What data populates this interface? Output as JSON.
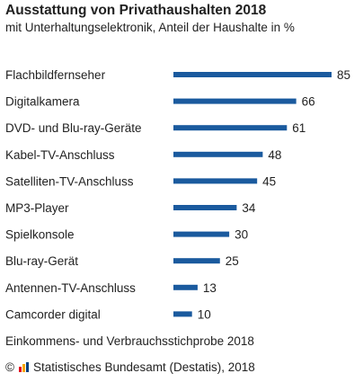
{
  "chart_data": {
    "type": "bar",
    "orientation": "horizontal",
    "title": "Ausstattung von Privathaushalten 2018",
    "subtitle": "mit Unterhaltungselektronik, Anteil der Haushalte in %",
    "categories": [
      "Flachbildfernseher",
      "Digitalkamera",
      "DVD- und Blu-ray-Geräte",
      "Kabel-TV-Anschluss",
      "Satelliten-TV-Anschluss",
      "MP3-Player",
      "Spielkonsole",
      "Blu-ray-Gerät",
      "Antennen-TV-Anschluss",
      "Camcorder digital"
    ],
    "values": [
      85,
      66,
      61,
      48,
      45,
      34,
      30,
      25,
      13,
      10
    ],
    "value_labels": [
      "85",
      "66",
      "61",
      "48",
      "45",
      "34",
      "30",
      "25",
      "13",
      "10"
    ],
    "xlim": [
      0,
      85
    ],
    "bar_color": "#1a5a9e",
    "grid": false,
    "source": "Einkommens- und Verbrauchsstichprobe 2018",
    "footer": "© Statistisches Bundesamt (Destatis), 2018"
  },
  "footer": {
    "copyright": "©",
    "publisher": "Statistisches Bundesamt (Destatis), 2018",
    "logo_icon": "destatis-logo-icon",
    "logo_colors": [
      "#e3001b",
      "#f7a600",
      "#003e7e"
    ]
  }
}
